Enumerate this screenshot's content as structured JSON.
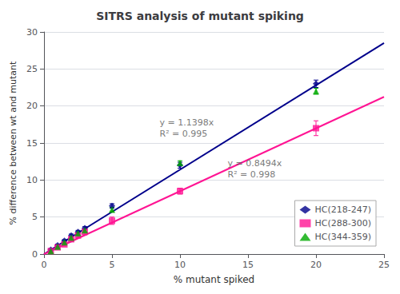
{
  "chart_data": {
    "type": "scatter",
    "title": "SITRS analysis of mutant spiking",
    "xlabel": "% mutant spiked",
    "ylabel": "% difference between wt and mutant",
    "xlim": [
      0,
      25
    ],
    "ylim": [
      0,
      30
    ],
    "xticks": [
      0,
      5,
      10,
      15,
      20,
      25
    ],
    "yticks": [
      0,
      5,
      10,
      15,
      20,
      25,
      30
    ],
    "grid": true,
    "legend": "lower right",
    "series": [
      {
        "name": "HC(218-247)",
        "type": "scatter",
        "marker": "diamond",
        "color": "#00008B",
        "x": [
          0.5,
          1.0,
          1.5,
          2.0,
          2.5,
          3.0,
          5.0,
          10.0,
          20.0
        ],
        "values": [
          0.6,
          1.2,
          1.8,
          2.5,
          3.0,
          3.5,
          6.5,
          12.0,
          23.0
        ],
        "yerr": [
          0.15,
          0.15,
          0.15,
          0.2,
          0.2,
          0.2,
          0.3,
          0.4,
          0.5
        ]
      },
      {
        "name": "HC(288-300)",
        "type": "scatter",
        "marker": "square",
        "color": "#FF1493",
        "x": [
          0.5,
          1.0,
          1.5,
          2.0,
          2.5,
          3.0,
          5.0,
          10.0,
          20.0
        ],
        "values": [
          0.4,
          0.9,
          1.3,
          2.0,
          2.5,
          3.0,
          4.5,
          8.5,
          17.0
        ],
        "yerr": [
          0.2,
          0.2,
          0.2,
          0.3,
          0.3,
          0.4,
          0.5,
          0.4,
          1.0
        ]
      },
      {
        "name": "HC(344-359)",
        "type": "scatter",
        "marker": "triangle",
        "color": "#00AA00",
        "x": [
          0.5,
          1.0,
          1.5,
          2.0,
          2.5,
          3.0,
          5.0,
          10.0,
          20.0
        ],
        "values": [
          0.4,
          1.0,
          1.6,
          2.2,
          2.8,
          3.2,
          6.0,
          12.3,
          22.0
        ],
        "yerr": [
          0.15,
          0.15,
          0.15,
          0.2,
          0.2,
          0.2,
          0.3,
          0.3,
          0.4
        ]
      },
      {
        "type": "line",
        "color": "#00008B",
        "x": [
          0,
          25
        ],
        "values": [
          0,
          28.495
        ]
      },
      {
        "type": "line",
        "color": "#FF1493",
        "x": [
          0,
          25
        ],
        "values": [
          0,
          21.235
        ]
      }
    ],
    "annotations": [
      {
        "text": "y = 1.1398x\nR² = 0.995",
        "x": 8.5,
        "y": 18.5
      },
      {
        "text": "y = 0.8494x\nR² = 0.998",
        "x": 13.5,
        "y": 13.0
      }
    ]
  }
}
